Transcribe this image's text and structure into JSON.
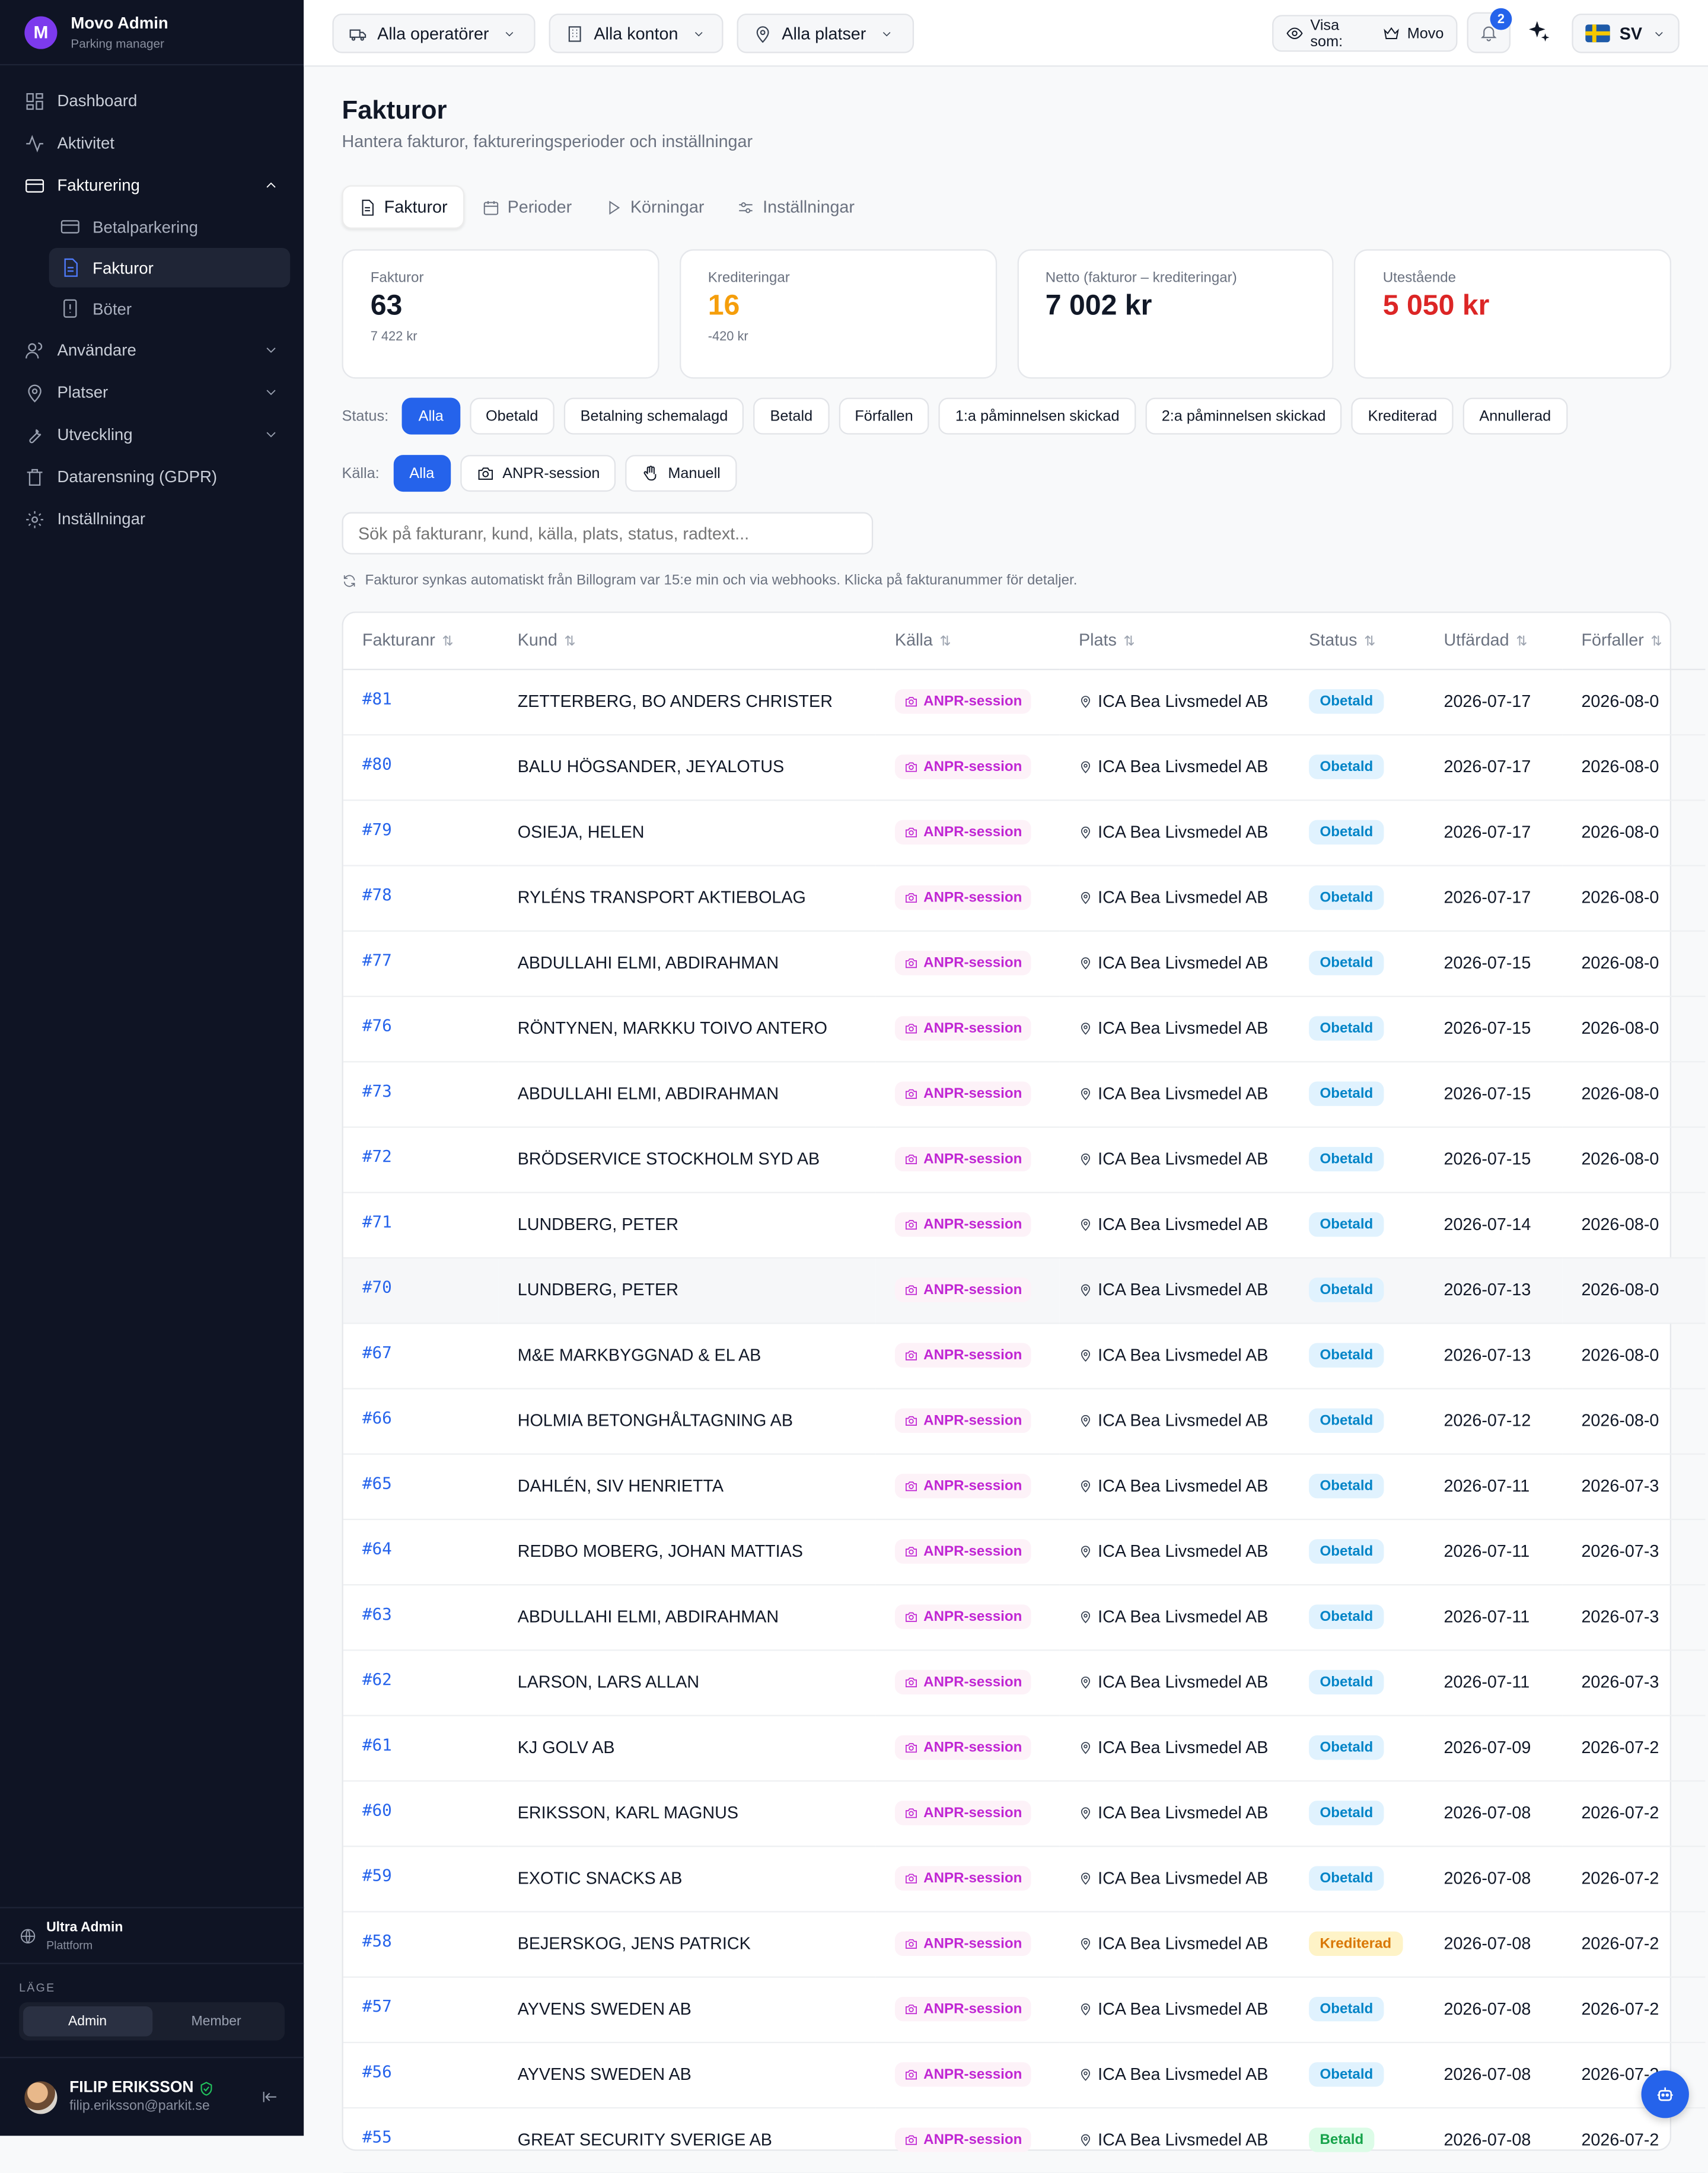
{
  "brand": {
    "logo_letter": "M",
    "title": "Movo Admin",
    "subtitle": "Parking manager"
  },
  "sidebar": {
    "items": [
      {
        "label": "Dashboard",
        "icon": "dashboard-icon"
      },
      {
        "label": "Aktivitet",
        "icon": "activity-icon"
      },
      {
        "label": "Fakturering",
        "icon": "billing-icon",
        "expanded": true
      },
      {
        "label": "Användare",
        "icon": "users-icon"
      },
      {
        "label": "Platser",
        "icon": "location-icon"
      },
      {
        "label": "Utveckling",
        "icon": "wrench-icon"
      },
      {
        "label": "Datarensning (GDPR)",
        "icon": "trash-icon"
      },
      {
        "label": "Inställningar",
        "icon": "gear-icon"
      }
    ],
    "billing_sub": [
      {
        "label": "Betalparkering",
        "icon": "card-icon"
      },
      {
        "label": "Fakturor",
        "icon": "document-icon",
        "active": true
      },
      {
        "label": "Böter",
        "icon": "alert-icon"
      }
    ],
    "platform": {
      "title": "Ultra Admin",
      "subtitle": "Plattform"
    },
    "mode": {
      "label": "LÄGE",
      "admin": "Admin",
      "member": "Member",
      "selected": "Admin"
    },
    "user": {
      "name": "FILIP ERIKSSON",
      "email": "filip.eriksson@parkit.se"
    }
  },
  "topbar": {
    "operators": "Alla operatörer",
    "accounts": "Alla konton",
    "places": "Alla platser",
    "view_as_label": "Visa som:",
    "view_as_value": "Movo",
    "notifications": "2",
    "language": "SV"
  },
  "page": {
    "title": "Fakturor",
    "subtitle": "Hantera fakturor, faktureringsperioder och inställningar",
    "tabs": [
      "Fakturor",
      "Perioder",
      "Körningar",
      "Inställningar"
    ],
    "active_tab": "Fakturor"
  },
  "cards": [
    {
      "label": "Fakturor",
      "value": "63",
      "sub": "7 422 kr",
      "color": "#111827"
    },
    {
      "label": "Krediteringar",
      "value": "16",
      "sub": "-420 kr",
      "color": "#f59e0b"
    },
    {
      "label": "Netto (fakturor – krediteringar)",
      "value": "7 002 kr",
      "sub": "",
      "color": "#111827"
    },
    {
      "label": "Utestående",
      "value": "5 050 kr",
      "sub": "",
      "color": "#dc2626"
    }
  ],
  "filters": {
    "status_label": "Status:",
    "status": [
      "Alla",
      "Obetald",
      "Betalning schemalagd",
      "Betald",
      "Förfallen",
      "1:a påminnelsen skickad",
      "2:a påminnelsen skickad",
      "Krediterad",
      "Annullerad"
    ],
    "status_selected": "Alla",
    "source_label": "Källa:",
    "source": [
      "Alla",
      "ANPR-session",
      "Manuell"
    ],
    "source_selected": "Alla"
  },
  "search": {
    "placeholder": "Sök på fakturanr, kund, källa, plats, status, radtext..."
  },
  "sync_note": "Fakturor synkas automatiskt från Billogram var 15:e min och via webhooks. Klicka på fakturanummer för detaljer.",
  "table": {
    "columns": [
      "Fakturanr",
      "Kund",
      "Källa",
      "Plats",
      "Status",
      "Utfärdad",
      "Förfaller"
    ],
    "rows": [
      {
        "no": "#81",
        "customer": "ZETTERBERG, BO ANDERS CHRISTER",
        "source": "ANPR-session",
        "place": "ICA Bea Livsmedel AB",
        "status": "Obetald",
        "issued": "2026-07-17",
        "due": "2026-08-0"
      },
      {
        "no": "#80",
        "customer": "BALU HÖGSANDER, JEYALOTUS",
        "source": "ANPR-session",
        "place": "ICA Bea Livsmedel AB",
        "status": "Obetald",
        "issued": "2026-07-17",
        "due": "2026-08-0"
      },
      {
        "no": "#79",
        "customer": "OSIEJA, HELEN",
        "source": "ANPR-session",
        "place": "ICA Bea Livsmedel AB",
        "status": "Obetald",
        "issued": "2026-07-17",
        "due": "2026-08-0"
      },
      {
        "no": "#78",
        "customer": "RYLÉNS TRANSPORT AKTIEBOLAG",
        "source": "ANPR-session",
        "place": "ICA Bea Livsmedel AB",
        "status": "Obetald",
        "issued": "2026-07-17",
        "due": "2026-08-0"
      },
      {
        "no": "#77",
        "customer": "ABDULLAHI ELMI, ABDIRAHMAN",
        "source": "ANPR-session",
        "place": "ICA Bea Livsmedel AB",
        "status": "Obetald",
        "issued": "2026-07-15",
        "due": "2026-08-0"
      },
      {
        "no": "#76",
        "customer": "RÖNTYNEN, MARKKU TOIVO ANTERO",
        "source": "ANPR-session",
        "place": "ICA Bea Livsmedel AB",
        "status": "Obetald",
        "issued": "2026-07-15",
        "due": "2026-08-0"
      },
      {
        "no": "#73",
        "customer": "ABDULLAHI ELMI, ABDIRAHMAN",
        "source": "ANPR-session",
        "place": "ICA Bea Livsmedel AB",
        "status": "Obetald",
        "issued": "2026-07-15",
        "due": "2026-08-0"
      },
      {
        "no": "#72",
        "customer": "BRÖDSERVICE STOCKHOLM SYD AB",
        "source": "ANPR-session",
        "place": "ICA Bea Livsmedel AB",
        "status": "Obetald",
        "issued": "2026-07-15",
        "due": "2026-08-0"
      },
      {
        "no": "#71",
        "customer": "LUNDBERG, PETER",
        "source": "ANPR-session",
        "place": "ICA Bea Livsmedel AB",
        "status": "Obetald",
        "issued": "2026-07-14",
        "due": "2026-08-0"
      },
      {
        "no": "#70",
        "customer": "LUNDBERG, PETER",
        "source": "ANPR-session",
        "place": "ICA Bea Livsmedel AB",
        "status": "Obetald",
        "issued": "2026-07-13",
        "due": "2026-08-0",
        "highlight": true
      },
      {
        "no": "#67",
        "customer": "M&E MARKBYGGNAD & EL AB",
        "source": "ANPR-session",
        "place": "ICA Bea Livsmedel AB",
        "status": "Obetald",
        "issued": "2026-07-13",
        "due": "2026-08-0"
      },
      {
        "no": "#66",
        "customer": "HOLMIA BETONGHÅLTAGNING AB",
        "source": "ANPR-session",
        "place": "ICA Bea Livsmedel AB",
        "status": "Obetald",
        "issued": "2026-07-12",
        "due": "2026-08-0"
      },
      {
        "no": "#65",
        "customer": "DAHLÉN, SIV HENRIETTA",
        "source": "ANPR-session",
        "place": "ICA Bea Livsmedel AB",
        "status": "Obetald",
        "issued": "2026-07-11",
        "due": "2026-07-3"
      },
      {
        "no": "#64",
        "customer": "REDBO MOBERG, JOHAN MATTIAS",
        "source": "ANPR-session",
        "place": "ICA Bea Livsmedel AB",
        "status": "Obetald",
        "issued": "2026-07-11",
        "due": "2026-07-3"
      },
      {
        "no": "#63",
        "customer": "ABDULLAHI ELMI, ABDIRAHMAN",
        "source": "ANPR-session",
        "place": "ICA Bea Livsmedel AB",
        "status": "Obetald",
        "issued": "2026-07-11",
        "due": "2026-07-3"
      },
      {
        "no": "#62",
        "customer": "LARSON, LARS ALLAN",
        "source": "ANPR-session",
        "place": "ICA Bea Livsmedel AB",
        "status": "Obetald",
        "issued": "2026-07-11",
        "due": "2026-07-3"
      },
      {
        "no": "#61",
        "customer": "KJ GOLV AB",
        "source": "ANPR-session",
        "place": "ICA Bea Livsmedel AB",
        "status": "Obetald",
        "issued": "2026-07-09",
        "due": "2026-07-2"
      },
      {
        "no": "#60",
        "customer": "ERIKSSON, KARL MAGNUS",
        "source": "ANPR-session",
        "place": "ICA Bea Livsmedel AB",
        "status": "Obetald",
        "issued": "2026-07-08",
        "due": "2026-07-2"
      },
      {
        "no": "#59",
        "customer": "EXOTIC SNACKS AB",
        "source": "ANPR-session",
        "place": "ICA Bea Livsmedel AB",
        "status": "Obetald",
        "issued": "2026-07-08",
        "due": "2026-07-2"
      },
      {
        "no": "#58",
        "customer": "BEJERSKOG, JENS PATRICK",
        "source": "ANPR-session",
        "place": "ICA Bea Livsmedel AB",
        "status": "Krediterad",
        "issued": "2026-07-08",
        "due": "2026-07-2"
      },
      {
        "no": "#57",
        "customer": "AYVENS SWEDEN AB",
        "source": "ANPR-session",
        "place": "ICA Bea Livsmedel AB",
        "status": "Obetald",
        "issued": "2026-07-08",
        "due": "2026-07-2"
      },
      {
        "no": "#56",
        "customer": "AYVENS SWEDEN AB",
        "source": "ANPR-session",
        "place": "ICA Bea Livsmedel AB",
        "status": "Obetald",
        "issued": "2026-07-08",
        "due": "2026-07-2"
      },
      {
        "no": "#55",
        "customer": "GREAT SECURITY SVERIGE AB",
        "source": "ANPR-session",
        "place": "ICA Bea Livsmedel AB",
        "status": "Betald",
        "issued": "2026-07-08",
        "due": "2026-07-2"
      }
    ]
  }
}
